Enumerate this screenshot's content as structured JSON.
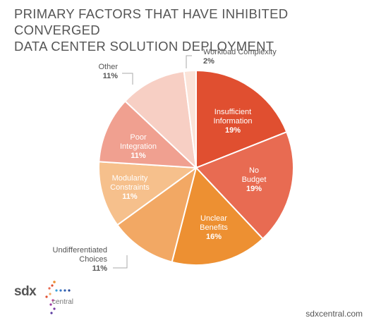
{
  "title_line1": "PRIMARY FACTORS THAT HAVE INHIBITED CONVERGED",
  "title_line2": "DATA CENTER SOLUTION DEPLOYMENT",
  "footer": {
    "url": "sdxcentral.com"
  },
  "logo": {
    "primary": "sdx",
    "secondary": "central"
  },
  "chart_data": {
    "type": "pie",
    "title": "PRIMARY FACTORS THAT HAVE INHIBITED CONVERGED DATA CENTER SOLUTION DEPLOYMENT",
    "slices": [
      {
        "label": [
          "Insufficient",
          "Information"
        ],
        "value": 19,
        "value_label": "19%",
        "color": "#e04f30",
        "label_color": "#ffffff",
        "label_placement": "inside"
      },
      {
        "label": [
          "No",
          "Budget"
        ],
        "value": 19,
        "value_label": "19%",
        "color": "#e86b52",
        "label_color": "#ffffff",
        "label_placement": "inside"
      },
      {
        "label": [
          "Unclear",
          "Benefits"
        ],
        "value": 16,
        "value_label": "16%",
        "color": "#ed9032",
        "label_color": "#ffffff",
        "label_placement": "inside"
      },
      {
        "label": [
          "Undifferentiated",
          "Choices"
        ],
        "value": 11,
        "value_label": "11%",
        "color": "#f2a864",
        "label_color": "#555555",
        "label_placement": "outside"
      },
      {
        "label": [
          "Modularity",
          "Constraints"
        ],
        "value": 11,
        "value_label": "11%",
        "color": "#f6c08c",
        "label_color": "#ffffff",
        "label_placement": "inside"
      },
      {
        "label": [
          "Poor",
          "Integration"
        ],
        "value": 11,
        "value_label": "11%",
        "color": "#f0a090",
        "label_color": "#ffffff",
        "label_placement": "inside"
      },
      {
        "label": [
          "Other"
        ],
        "value": 11,
        "value_label": "11%",
        "color": "#f7cfc4",
        "label_color": "#555555",
        "label_placement": "outside"
      },
      {
        "label": [
          "Workload Complexity"
        ],
        "value": 2,
        "value_label": "2%",
        "color": "#fbe3d8",
        "label_color": "#555555",
        "label_placement": "outside"
      }
    ],
    "start_angle_deg": 0,
    "direction": "clockwise"
  }
}
